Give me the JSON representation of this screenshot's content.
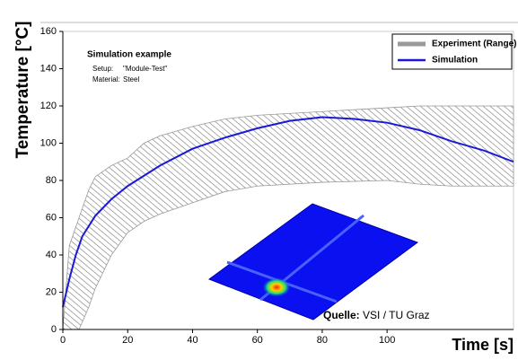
{
  "chart_data": {
    "type": "line",
    "y_label": "Temperature [°C]",
    "x_label": "Time [s]",
    "annotation_title": "Simulation example",
    "annotation_lines": [
      [
        "Setup:",
        "\"Module-Test\""
      ],
      [
        "Material:",
        "Steel"
      ]
    ],
    "source_label": "Quelle:",
    "source": "VSI / TU Graz",
    "xlim": [
      0,
      139
    ],
    "ylim": [
      0,
      160
    ],
    "xticks": [
      0,
      20,
      40,
      60,
      80,
      100
    ],
    "yticks": [
      0,
      20,
      40,
      60,
      80,
      100,
      120,
      140,
      160
    ],
    "legend": "top-right",
    "series": [
      {
        "name": "Experiment (Range)",
        "color": "#9a9a9a",
        "x": [
          0,
          2,
          5,
          8,
          10,
          15,
          20,
          25,
          30,
          40,
          50,
          60,
          80,
          100,
          110,
          120,
          139
        ],
        "upper": [
          0,
          45,
          60,
          75,
          82,
          88,
          92,
          100,
          104,
          109,
          113,
          115,
          117,
          119,
          120,
          120,
          120
        ],
        "lower": [
          0,
          0,
          0,
          12,
          22,
          40,
          52,
          58,
          62,
          68,
          74,
          77,
          79,
          80,
          78,
          77,
          77
        ]
      },
      {
        "name": "Simulation",
        "color": "#1a1ad6",
        "x": [
          0,
          2,
          4,
          6,
          10,
          15,
          20,
          30,
          40,
          50,
          60,
          70,
          80,
          90,
          100,
          110,
          120,
          130,
          139
        ],
        "values": [
          12,
          27,
          40,
          50,
          61,
          70,
          77,
          88,
          97,
          103,
          108,
          112,
          114,
          113,
          111,
          107,
          101,
          96,
          90
        ]
      }
    ]
  }
}
